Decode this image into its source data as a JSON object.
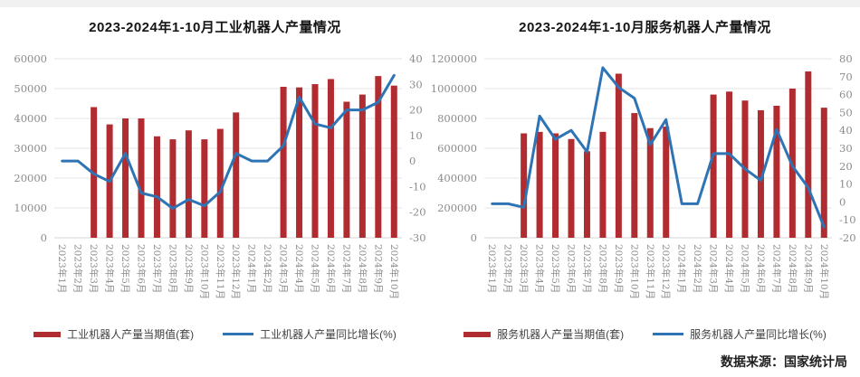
{
  "page": {
    "source_label": "数据来源：国家统计局"
  },
  "colors": {
    "bar_red": "#B02C30",
    "line_blue": "#2E74B5",
    "grid": "#e4e4e4",
    "axis_label": "#8c8c8c",
    "top_strip": "#f1f1f1"
  },
  "chart_data": [
    {
      "type": "combo-bar-line",
      "title": "2023-2024年1-10月工业机器人产量情况",
      "categories": [
        "2023年1月",
        "2023年2月",
        "2023年3月",
        "2023年4月",
        "2023年5月",
        "2023年6月",
        "2023年7月",
        "2023年8月",
        "2023年9月",
        "2023年10月",
        "2023年11月",
        "2023年12月",
        "2024年1月",
        "2024年2月",
        "2024年3月",
        "2024年4月",
        "2024年5月",
        "2024年6月",
        "2024年7月",
        "2024年8月",
        "2024年9月",
        "2024年10月"
      ],
      "series": [
        {
          "name": "工业机器人产量当期值(套)",
          "type": "bar",
          "axis": "left",
          "color": "#B02C30",
          "values": [
            null,
            null,
            43800,
            38000,
            40000,
            40000,
            34000,
            33000,
            36000,
            33000,
            36500,
            42000,
            null,
            null,
            50600,
            50400,
            51500,
            53200,
            45600,
            48000,
            54200,
            51000
          ]
        },
        {
          "name": "工业机器人产量同比增长(%)",
          "type": "line",
          "axis": "right",
          "color": "#2E74B5",
          "values": [
            0,
            0,
            -5,
            -8,
            3,
            -12.5,
            -14,
            -18.5,
            -15,
            -17.5,
            -12,
            3,
            0,
            0,
            6,
            25,
            14.5,
            13,
            20,
            20,
            23,
            33.5
          ]
        }
      ],
      "left_axis": {
        "min": 0,
        "max": 60000,
        "tick_labels": [
          "60000",
          "50000",
          "40000",
          "30000",
          "20000",
          "10000",
          "0"
        ]
      },
      "right_axis": {
        "min": -30,
        "max": 40,
        "tick_labels": [
          "40",
          "30",
          "20",
          "10",
          "0",
          "-10",
          "-20",
          "-30"
        ]
      },
      "grid": true,
      "legend_position": "bottom"
    },
    {
      "type": "combo-bar-line",
      "title": "2023-2024年1-10月服务机器人产量情况",
      "categories": [
        "2023年1月",
        "2023年2月",
        "2023年3月",
        "2023年4月",
        "2023年5月",
        "2023年6月",
        "2023年7月",
        "2023年8月",
        "2023年9月",
        "2023年10月",
        "2023年11月",
        "2023年12月",
        "2024年1月",
        "2024年2月",
        "2024年3月",
        "2024年4月",
        "2024年5月",
        "2024年6月",
        "2024年7月",
        "2024年8月",
        "2024年9月",
        "2024年10月"
      ],
      "series": [
        {
          "name": "服务机器人产量当期值(套)",
          "type": "bar",
          "axis": "left",
          "color": "#B02C30",
          "values": [
            null,
            null,
            700000,
            710000,
            700000,
            662000,
            580000,
            710000,
            1100000,
            836000,
            735000,
            745000,
            null,
            null,
            960000,
            980000,
            920000,
            855000,
            885000,
            1000000,
            1115000,
            872000
          ]
        },
        {
          "name": "服务机器人产量同比增长(%)",
          "type": "line",
          "axis": "right",
          "color": "#2E74B5",
          "values": [
            -1,
            -1,
            -3,
            48,
            35,
            40,
            28,
            75,
            64,
            58,
            32,
            46,
            -1,
            -1,
            27,
            27,
            18.5,
            12,
            40.5,
            20,
            8,
            -14
          ]
        }
      ],
      "left_axis": {
        "min": 0,
        "max": 1200000,
        "tick_labels": [
          "1200000",
          "1000000",
          "800000",
          "600000",
          "400000",
          "200000",
          "0"
        ]
      },
      "right_axis": {
        "min": -20,
        "max": 80,
        "tick_labels": [
          "80",
          "70",
          "60",
          "50",
          "40",
          "30",
          "20",
          "10",
          "0",
          "-10",
          "-20"
        ]
      },
      "grid": true,
      "legend_position": "bottom"
    }
  ]
}
